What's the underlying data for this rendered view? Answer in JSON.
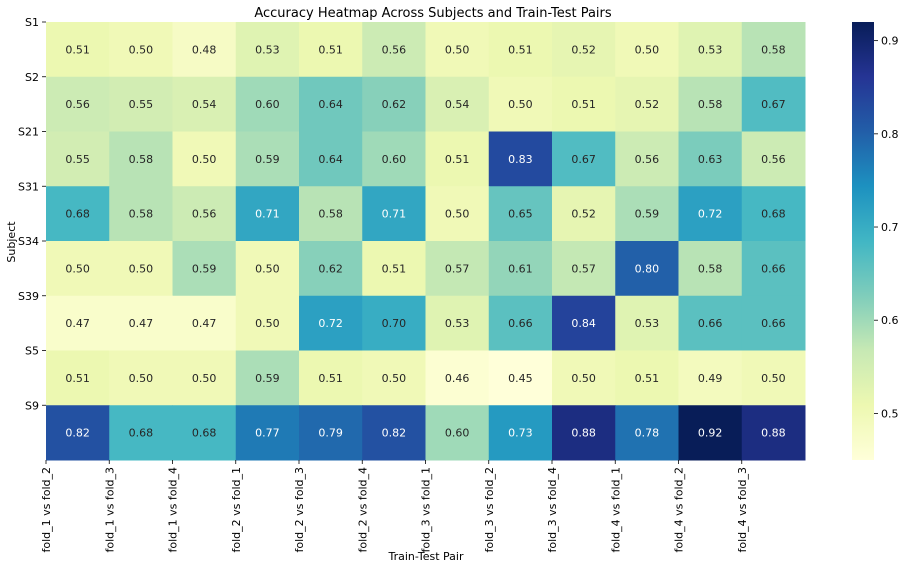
{
  "chart_data": {
    "type": "heatmap",
    "title": "Accuracy Heatmap Across Subjects and Train-Test Pairs",
    "xlabel": "Train-Test Pair",
    "ylabel": "Subject",
    "columns": [
      "fold_1 vs fold_2",
      "fold_1 vs fold_3",
      "fold_1 vs fold_4",
      "fold_2 vs fold_1",
      "fold_2 vs fold_3",
      "fold_2 vs fold_4",
      "fold_3 vs fold_1",
      "fold_3 vs fold_2",
      "fold_3 vs fold_4",
      "fold_4 vs fold_1",
      "fold_4 vs fold_2",
      "fold_4 vs fold_3"
    ],
    "rows": [
      "S1",
      "S2",
      "S21",
      "S31",
      "S34",
      "S39",
      "S5",
      "S9"
    ],
    "values": [
      [
        0.51,
        0.5,
        0.48,
        0.53,
        0.51,
        0.56,
        0.5,
        0.51,
        0.52,
        0.5,
        0.53,
        0.58
      ],
      [
        0.56,
        0.55,
        0.54,
        0.6,
        0.64,
        0.62,
        0.54,
        0.5,
        0.51,
        0.52,
        0.58,
        0.67
      ],
      [
        0.55,
        0.58,
        0.5,
        0.59,
        0.64,
        0.6,
        0.51,
        0.83,
        0.67,
        0.56,
        0.63,
        0.56
      ],
      [
        0.68,
        0.58,
        0.56,
        0.71,
        0.58,
        0.71,
        0.5,
        0.65,
        0.52,
        0.59,
        0.72,
        0.68
      ],
      [
        0.5,
        0.5,
        0.59,
        0.5,
        0.62,
        0.51,
        0.57,
        0.61,
        0.57,
        0.8,
        0.58,
        0.66
      ],
      [
        0.47,
        0.47,
        0.47,
        0.5,
        0.72,
        0.7,
        0.53,
        0.66,
        0.84,
        0.53,
        0.66,
        0.66
      ],
      [
        0.51,
        0.5,
        0.5,
        0.59,
        0.51,
        0.5,
        0.46,
        0.45,
        0.5,
        0.51,
        0.49,
        0.5
      ],
      [
        0.82,
        0.68,
        0.68,
        0.77,
        0.79,
        0.82,
        0.6,
        0.73,
        0.88,
        0.78,
        0.92,
        0.88
      ]
    ],
    "colormap": "YlGnBu",
    "color_range": [
      0.45,
      0.92
    ],
    "colorbar_ticks": [
      "0.5",
      "0.6",
      "0.7",
      "0.8",
      "0.9"
    ],
    "grid": false,
    "colorbar": "right"
  }
}
